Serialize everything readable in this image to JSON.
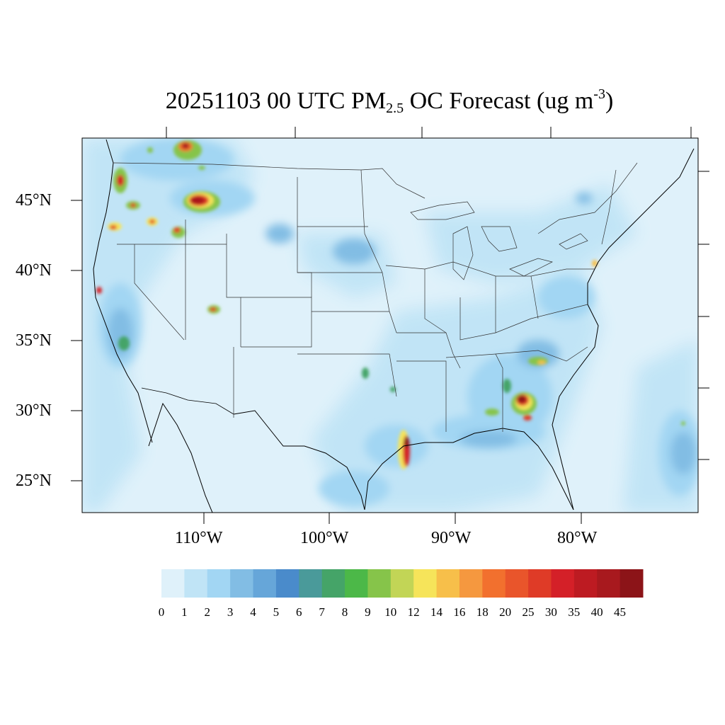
{
  "title": {
    "prefix": "20251103 00 UTC PM",
    "subscript": "2.5",
    "middle": " OC Forecast (ug m",
    "superscript": "-3",
    "suffix": ")"
  },
  "map": {
    "lat_labels": [
      "45°N",
      "40°N",
      "35°N",
      "30°N",
      "25°N"
    ],
    "lon_labels": [
      "110°W",
      "100°W",
      "90°W",
      "80°W"
    ]
  },
  "colorbar": {
    "labels": [
      "0",
      "1",
      "2",
      "3",
      "4",
      "5",
      "6",
      "7",
      "8",
      "9",
      "10",
      "12",
      "14",
      "16",
      "18",
      "20",
      "25",
      "30",
      "35",
      "40",
      "45"
    ],
    "colors": [
      "#dff1fa",
      "#c0e4f6",
      "#a2d6f3",
      "#82bde4",
      "#66a6d9",
      "#4a8bcb",
      "#4a9a9a",
      "#45a468",
      "#4cb848",
      "#86c44a",
      "#c2d556",
      "#f6e45a",
      "#f7bf4a",
      "#f5983f",
      "#f2702e",
      "#e9552b",
      "#df3b27",
      "#d42028",
      "#bd1b22",
      "#a8191e",
      "#8c1418"
    ]
  }
}
